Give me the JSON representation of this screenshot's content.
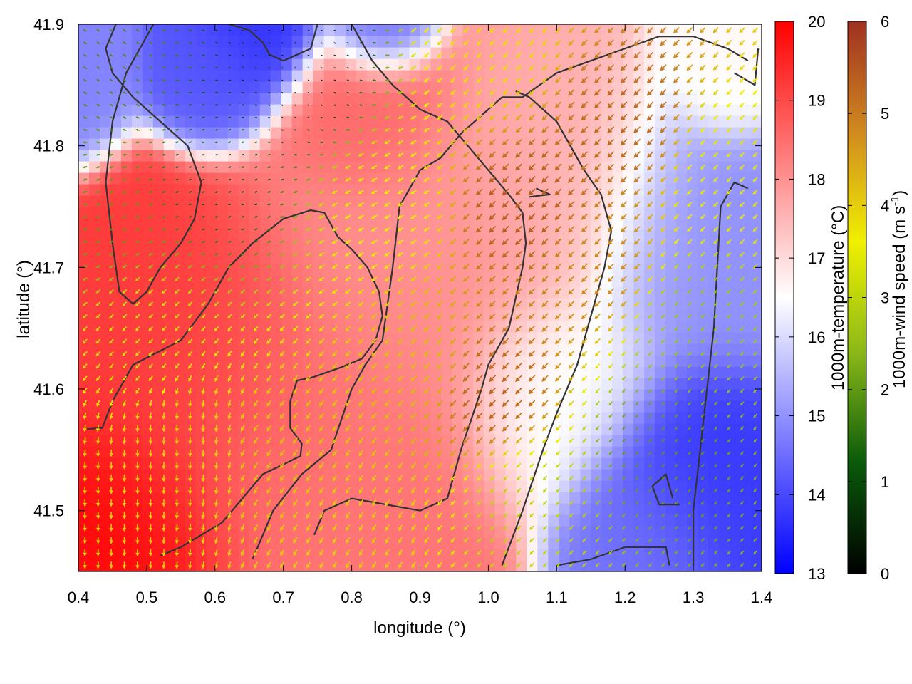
{
  "chart_data": {
    "type": "heatmap",
    "title": "",
    "xlabel": "longitude (°)",
    "ylabel": "latitude (°)",
    "xlim": [
      0.4,
      1.4
    ],
    "ylim": [
      41.45,
      41.9
    ],
    "xticks": [
      {
        "value": 0.4,
        "label": "0.4"
      },
      {
        "value": 0.5,
        "label": "0.5"
      },
      {
        "value": 0.6,
        "label": "0.6"
      },
      {
        "value": 0.7,
        "label": "0.7"
      },
      {
        "value": 0.8,
        "label": "0.8"
      },
      {
        "value": 0.9,
        "label": "0.9"
      },
      {
        "value": 1.0,
        "label": "1.0"
      },
      {
        "value": 1.1,
        "label": "1.1"
      },
      {
        "value": 1.2,
        "label": "1.2"
      },
      {
        "value": 1.3,
        "label": "1.3"
      },
      {
        "value": 1.4,
        "label": "1.4"
      }
    ],
    "yticks": [
      {
        "value": 41.5,
        "label": "41.5"
      },
      {
        "value": 41.6,
        "label": "41.6"
      },
      {
        "value": 41.7,
        "label": "41.7"
      },
      {
        "value": 41.8,
        "label": "41.8"
      },
      {
        "value": 41.9,
        "label": "41.9"
      }
    ],
    "temperature_field": {
      "colorbar_label": "1000m-temperature (°C)",
      "range": [
        13,
        20
      ],
      "ticks": [
        {
          "value": 13,
          "label": "13"
        },
        {
          "value": 14,
          "label": "14"
        },
        {
          "value": 15,
          "label": "15"
        },
        {
          "value": 16,
          "label": "16"
        },
        {
          "value": 17,
          "label": "17"
        },
        {
          "value": 18,
          "label": "18"
        },
        {
          "value": 19,
          "label": "19"
        },
        {
          "value": 20,
          "label": "20"
        }
      ],
      "colors": [
        "#0000ff",
        "#ffffff",
        "#ff0000"
      ],
      "centers": [
        {
          "lon": 0.46,
          "lat": 41.48,
          "value": 19.9,
          "spread": 0.12
        },
        {
          "lon": 0.55,
          "lat": 41.62,
          "value": 19.2,
          "spread": 0.15
        },
        {
          "lon": 0.75,
          "lat": 41.55,
          "value": 18.4,
          "spread": 0.18
        },
        {
          "lon": 0.9,
          "lat": 41.7,
          "value": 18.0,
          "spread": 0.16
        },
        {
          "lon": 0.82,
          "lat": 41.82,
          "value": 18.6,
          "spread": 0.08
        },
        {
          "lon": 0.36,
          "lat": 41.86,
          "value": 14.8,
          "spread": 0.07
        },
        {
          "lon": 0.6,
          "lat": 41.86,
          "value": 14.2,
          "spread": 0.06
        },
        {
          "lon": 0.66,
          "lat": 41.89,
          "value": 13.7,
          "spread": 0.06
        },
        {
          "lon": 0.84,
          "lat": 41.9,
          "value": 14.4,
          "spread": 0.05
        },
        {
          "lon": 1.1,
          "lat": 41.76,
          "value": 17.6,
          "spread": 0.12
        },
        {
          "lon": 1.3,
          "lat": 41.72,
          "value": 15.0,
          "spread": 0.12
        },
        {
          "lon": 1.3,
          "lat": 41.53,
          "value": 13.8,
          "spread": 0.1
        },
        {
          "lon": 1.22,
          "lat": 41.48,
          "value": 14.6,
          "spread": 0.08
        },
        {
          "lon": 1.1,
          "lat": 41.6,
          "value": 16.4,
          "spread": 0.1
        },
        {
          "lon": 1.35,
          "lat": 41.86,
          "value": 16.6,
          "spread": 0.06
        }
      ]
    },
    "wind_field": {
      "colorbar_label": "1000m-wind speed (m s-1)",
      "colorbar_label_base": "1000m-wind speed (m s",
      "colorbar_label_exp": "-1",
      "colorbar_label_close": ")",
      "range": [
        0,
        6
      ],
      "ticks": [
        {
          "value": 0,
          "label": "0"
        },
        {
          "value": 1,
          "label": "1"
        },
        {
          "value": 2,
          "label": "2"
        },
        {
          "value": 3,
          "label": "3"
        },
        {
          "value": 4,
          "label": "4"
        },
        {
          "value": 5,
          "label": "5"
        },
        {
          "value": 6,
          "label": "6"
        }
      ],
      "colors": [
        "#000000",
        "#0a5a0a",
        "#8ab818",
        "#f0f000",
        "#d08a20",
        "#a03020"
      ],
      "samples": [
        {
          "lon": 0.45,
          "lat": 41.5,
          "speed": 4.0,
          "dir": 270
        },
        {
          "lon": 0.55,
          "lat": 41.55,
          "speed": 4.0,
          "dir": 270
        },
        {
          "lon": 0.7,
          "lat": 41.55,
          "speed": 4.2,
          "dir": 235
        },
        {
          "lon": 0.5,
          "lat": 41.65,
          "speed": 3.2,
          "dir": 225
        },
        {
          "lon": 0.45,
          "lat": 41.75,
          "speed": 2.0,
          "dir": 200
        },
        {
          "lon": 0.6,
          "lat": 41.78,
          "speed": 1.0,
          "dir": 200
        },
        {
          "lon": 0.45,
          "lat": 41.86,
          "speed": 1.8,
          "dir": 150
        },
        {
          "lon": 0.72,
          "lat": 41.86,
          "speed": 0.4,
          "dir": 150
        },
        {
          "lon": 0.85,
          "lat": 41.75,
          "speed": 3.6,
          "dir": 210
        },
        {
          "lon": 0.9,
          "lat": 41.62,
          "speed": 4.2,
          "dir": 225
        },
        {
          "lon": 1.0,
          "lat": 41.6,
          "speed": 5.3,
          "dir": 225
        },
        {
          "lon": 1.05,
          "lat": 41.75,
          "speed": 5.4,
          "dir": 225
        },
        {
          "lon": 1.15,
          "lat": 41.7,
          "speed": 4.8,
          "dir": 225
        },
        {
          "lon": 1.2,
          "lat": 41.82,
          "speed": 5.2,
          "dir": 225
        },
        {
          "lon": 1.05,
          "lat": 41.5,
          "speed": 3.0,
          "dir": 225
        },
        {
          "lon": 1.25,
          "lat": 41.55,
          "speed": 2.0,
          "dir": 230
        },
        {
          "lon": 1.3,
          "lat": 41.65,
          "speed": 2.6,
          "dir": 225
        },
        {
          "lon": 1.35,
          "lat": 41.78,
          "speed": 3.4,
          "dir": 225
        },
        {
          "lon": 1.0,
          "lat": 41.88,
          "speed": 3.8,
          "dir": 225
        },
        {
          "lon": 0.8,
          "lat": 41.48,
          "speed": 4.0,
          "dir": 240
        }
      ]
    },
    "contours": [
      [
        [
          0.412,
          41.567
        ],
        [
          0.435,
          41.568
        ],
        [
          0.45,
          41.59
        ],
        [
          0.48,
          41.62
        ],
        [
          0.55,
          41.64
        ],
        [
          0.59,
          41.67
        ],
        [
          0.62,
          41.7
        ],
        [
          0.655,
          41.72
        ],
        [
          0.7,
          41.74
        ],
        [
          0.74,
          41.747
        ],
        [
          0.76,
          41.745
        ],
        [
          0.78,
          41.725
        ],
        [
          0.8,
          41.715
        ],
        [
          0.823,
          41.7
        ],
        [
          0.84,
          41.68
        ],
        [
          0.845,
          41.66
        ],
        [
          0.835,
          41.64
        ],
        [
          0.815,
          41.625
        ],
        [
          0.785,
          41.618
        ],
        [
          0.745,
          41.61
        ],
        [
          0.72,
          41.607
        ],
        [
          0.71,
          41.59
        ],
        [
          0.71,
          41.568
        ],
        [
          0.727,
          41.555
        ],
        [
          0.725,
          41.545
        ],
        [
          0.7,
          41.538
        ],
        [
          0.67,
          41.53
        ],
        [
          0.64,
          41.51
        ],
        [
          0.61,
          41.49
        ],
        [
          0.58,
          41.48
        ],
        [
          0.55,
          41.47
        ],
        [
          0.52,
          41.463
        ]
      ],
      [
        [
          0.655,
          41.46
        ],
        [
          0.685,
          41.5
        ],
        [
          0.727,
          41.53
        ],
        [
          0.77,
          41.55
        ],
        [
          0.8,
          41.6
        ],
        [
          0.82,
          41.62
        ],
        [
          0.845,
          41.64
        ],
        [
          0.86,
          41.7
        ],
        [
          0.87,
          41.75
        ],
        [
          0.9,
          41.78
        ],
        [
          0.93,
          41.79
        ],
        [
          0.96,
          41.81
        ],
        [
          0.98,
          41.82
        ],
        [
          1.0,
          41.83
        ],
        [
          1.02,
          41.84
        ],
        [
          1.05,
          41.84
        ],
        [
          1.1,
          41.86
        ],
        [
          1.15,
          41.87
        ],
        [
          1.2,
          41.88
        ],
        [
          1.25,
          41.89
        ],
        [
          1.3,
          41.89
        ],
        [
          1.35,
          41.88
        ],
        [
          1.38,
          41.87
        ]
      ],
      [
        [
          0.745,
          41.48
        ],
        [
          0.76,
          41.5
        ],
        [
          0.8,
          41.51
        ],
        [
          0.85,
          41.505
        ],
        [
          0.9,
          41.5
        ],
        [
          0.94,
          41.51
        ],
        [
          0.96,
          41.55
        ],
        [
          0.99,
          41.6
        ],
        [
          1.0,
          41.62
        ],
        [
          1.03,
          41.65
        ],
        [
          1.05,
          41.7
        ],
        [
          1.055,
          41.72
        ],
        [
          1.05,
          41.745
        ],
        [
          1.03,
          41.76
        ],
        [
          1.0,
          41.78
        ],
        [
          0.97,
          41.8
        ],
        [
          0.94,
          41.82
        ],
        [
          0.9,
          41.83
        ],
        [
          0.86,
          41.85
        ],
        [
          0.83,
          41.87
        ],
        [
          0.8,
          41.9
        ]
      ],
      [
        [
          1.02,
          41.455
        ],
        [
          1.05,
          41.5
        ],
        [
          1.08,
          41.55
        ],
        [
          1.1,
          41.58
        ],
        [
          1.13,
          41.62
        ],
        [
          1.15,
          41.66
        ],
        [
          1.17,
          41.7
        ],
        [
          1.18,
          41.73
        ],
        [
          1.165,
          41.76
        ],
        [
          1.14,
          41.78
        ],
        [
          1.12,
          41.8
        ],
        [
          1.1,
          41.82
        ],
        [
          1.08,
          41.83
        ],
        [
          1.06,
          41.84
        ],
        [
          1.04,
          41.845
        ]
      ],
      [
        [
          1.1,
          41.455
        ],
        [
          1.15,
          41.46
        ],
        [
          1.2,
          41.47
        ],
        [
          1.26,
          41.47
        ],
        [
          1.265,
          41.455
        ]
      ],
      [
        [
          1.3,
          41.455
        ],
        [
          1.3,
          41.5
        ],
        [
          1.31,
          41.55
        ],
        [
          1.32,
          41.6
        ],
        [
          1.33,
          41.65
        ],
        [
          1.335,
          41.7
        ],
        [
          1.34,
          41.75
        ],
        [
          1.36,
          41.77
        ],
        [
          1.38,
          41.765
        ]
      ],
      [
        [
          1.28,
          41.505
        ],
        [
          1.25,
          41.505
        ],
        [
          1.24,
          41.52
        ],
        [
          1.26,
          41.53
        ],
        [
          1.27,
          41.51
        ]
      ],
      [
        [
          1.36,
          41.86
        ],
        [
          1.39,
          41.85
        ],
        [
          1.395,
          41.88
        ]
      ],
      [
        [
          0.455,
          41.9
        ],
        [
          0.44,
          41.88
        ],
        [
          0.45,
          41.86
        ],
        [
          0.48,
          41.84
        ],
        [
          0.52,
          41.82
        ],
        [
          0.56,
          41.8
        ],
        [
          0.58,
          41.77
        ],
        [
          0.57,
          41.74
        ],
        [
          0.55,
          41.72
        ],
        [
          0.52,
          41.7
        ],
        [
          0.5,
          41.68
        ],
        [
          0.48,
          41.67
        ],
        [
          0.46,
          41.68
        ],
        [
          0.45,
          41.72
        ],
        [
          0.44,
          41.77
        ],
        [
          0.45,
          41.82
        ],
        [
          0.47,
          41.86
        ],
        [
          0.49,
          41.88
        ],
        [
          0.51,
          41.9
        ]
      ],
      [
        [
          0.62,
          41.9
        ],
        [
          0.65,
          41.895
        ],
        [
          0.67,
          41.885
        ],
        [
          0.68,
          41.875
        ],
        [
          0.7,
          41.87
        ],
        [
          0.72,
          41.875
        ],
        [
          0.74,
          41.88
        ],
        [
          0.75,
          41.9
        ]
      ],
      [
        [
          1.07,
          41.765
        ],
        [
          1.09,
          41.76
        ],
        [
          1.06,
          41.758
        ]
      ]
    ]
  }
}
